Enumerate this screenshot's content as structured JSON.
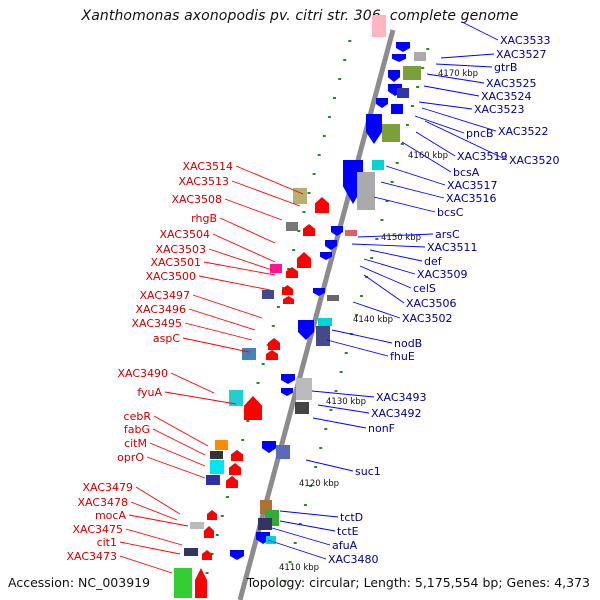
{
  "title": "Xanthomonas axonopodis pv. citri str. 306, complete genome",
  "footer": {
    "accession": "Accession: NC_003919",
    "summary": "Topology: circular; Length: 5,175,554 bp; Genes: 4,373"
  },
  "colors": {
    "backbone": "#8c8c8c",
    "forward_gene": "#ff0000",
    "reverse_gene": "#0000ff",
    "forward_label": "#cc0000",
    "reverse_label": "#00008b",
    "tick": "#2a8a2a"
  },
  "scale_labels": [
    "4170 kbp",
    "4160 kbp",
    "4150 kbp",
    "4140 kbp",
    "4130 kbp",
    "4120 kbp",
    "4110 kbp"
  ],
  "left_labels": [
    "XAC3514",
    "XAC3513",
    "XAC3508",
    "rhgB",
    "XAC3504",
    "XAC3503",
    "XAC3501",
    "XAC3500",
    "XAC3497",
    "XAC3496",
    "XAC3495",
    "aspC",
    "XAC3490",
    "fyuA",
    "cebR",
    "fabG",
    "citM",
    "oprO",
    "XAC3479",
    "XAC3478",
    "mocA",
    "XAC3475",
    "cit1",
    "XAC3473"
  ],
  "right_labels": [
    "XAC3533",
    "XAC3527",
    "gtrB",
    "XAC3525",
    "XAC3524",
    "XAC3523",
    "pncB",
    "XAC3522",
    "XAC3519",
    "XAC3520",
    "bcsA",
    "XAC3517",
    "XAC3516",
    "bcsC",
    "arsC",
    "XAC3511",
    "def",
    "XAC3509",
    "celS",
    "XAC3506",
    "XAC3502",
    "nodB",
    "fhuE",
    "XAC3493",
    "XAC3492",
    "nonF",
    "suc1",
    "tctD",
    "tctE",
    "afuA",
    "XAC3480"
  ]
}
